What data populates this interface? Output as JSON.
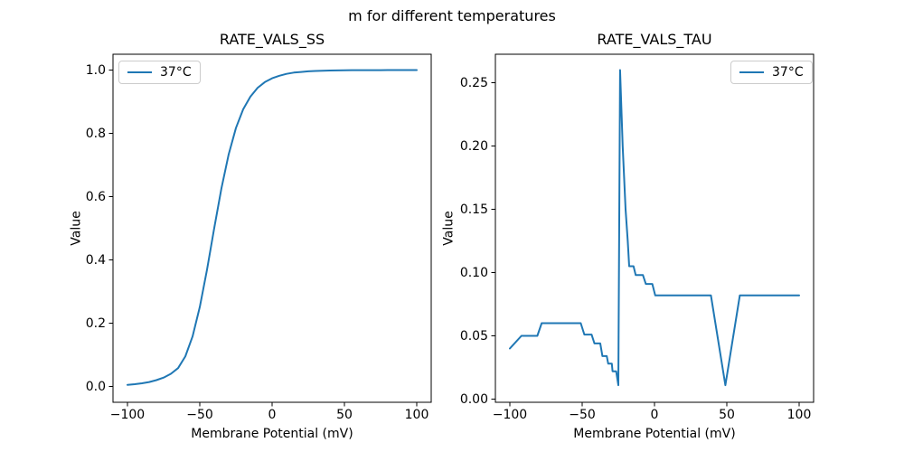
{
  "figure": {
    "suptitle": "m for different temperatures",
    "background": "#ffffff",
    "line_color": "#1f77b4"
  },
  "chart_data": [
    {
      "type": "line",
      "title": "RATE_VALS_SS",
      "xlabel": "Membrane Potential (mV)",
      "ylabel": "Value",
      "legend": {
        "label": "37°C",
        "position": "upper-left"
      },
      "color": "#1f77b4",
      "grid": false,
      "xlim": [
        -110,
        110
      ],
      "ylim": [
        -0.05,
        1.05
      ],
      "xticks": [
        -100,
        -50,
        0,
        50,
        100
      ],
      "xtick_labels": [
        "−100",
        "−50",
        "0",
        "50",
        "100"
      ],
      "yticks": [
        0.0,
        0.2,
        0.4,
        0.6,
        0.8,
        1.0
      ],
      "ytick_labels": [
        "0.0",
        "0.2",
        "0.4",
        "0.6",
        "0.8",
        "1.0"
      ],
      "x": [
        -100,
        -95,
        -90,
        -85,
        -80,
        -75,
        -70,
        -65,
        -60,
        -55,
        -50,
        -45,
        -40,
        -35,
        -30,
        -25,
        -20,
        -15,
        -10,
        -5,
        0,
        5,
        10,
        15,
        20,
        25,
        30,
        35,
        40,
        45,
        50,
        55,
        60,
        65,
        70,
        75,
        80,
        85,
        90,
        95,
        100
      ],
      "y": [
        0.005,
        0.007,
        0.01,
        0.014,
        0.02,
        0.028,
        0.04,
        0.058,
        0.095,
        0.158,
        0.251,
        0.369,
        0.501,
        0.627,
        0.734,
        0.817,
        0.876,
        0.916,
        0.944,
        0.962,
        0.974,
        0.982,
        0.988,
        0.992,
        0.994,
        0.996,
        0.997,
        0.998,
        0.9985,
        0.999,
        0.9993,
        0.9995,
        0.9996,
        0.9997,
        0.9998,
        0.9998,
        0.9999,
        0.9999,
        0.9999,
        1.0,
        1.0
      ]
    },
    {
      "type": "line",
      "title": "RATE_VALS_TAU",
      "xlabel": "Membrane Potential (mV)",
      "ylabel": "Value",
      "legend": {
        "label": "37°C",
        "position": "upper-right"
      },
      "color": "#1f77b4",
      "grid": false,
      "xlim": [
        -110,
        110
      ],
      "ylim": [
        -0.0025,
        0.2725
      ],
      "xticks": [
        -100,
        -50,
        0,
        50,
        100
      ],
      "xtick_labels": [
        "−100",
        "−50",
        "0",
        "50",
        "100"
      ],
      "yticks": [
        0.0,
        0.05,
        0.1,
        0.15,
        0.2,
        0.25
      ],
      "ytick_labels": [
        "0.00",
        "0.05",
        "0.10",
        "0.15",
        "0.20",
        "0.25"
      ],
      "x": [
        -100,
        -92,
        -81,
        -78,
        -51,
        -48.5,
        -43.5,
        -41.5,
        -37.5,
        -36,
        -33,
        -32,
        -29.5,
        -29,
        -26.5,
        -25,
        -23.8,
        -22,
        -20,
        -18.5,
        -17.5,
        -14.5,
        -13,
        -8,
        -6,
        -1.5,
        0.5,
        39,
        49,
        59,
        100
      ],
      "y": [
        0.04,
        0.05,
        0.05,
        0.06,
        0.06,
        0.051,
        0.051,
        0.044,
        0.044,
        0.034,
        0.034,
        0.028,
        0.028,
        0.022,
        0.022,
        0.011,
        0.26,
        0.2,
        0.15,
        0.125,
        0.105,
        0.105,
        0.098,
        0.098,
        0.091,
        0.091,
        0.082,
        0.082,
        0.011,
        0.082,
        0.082
      ]
    }
  ]
}
